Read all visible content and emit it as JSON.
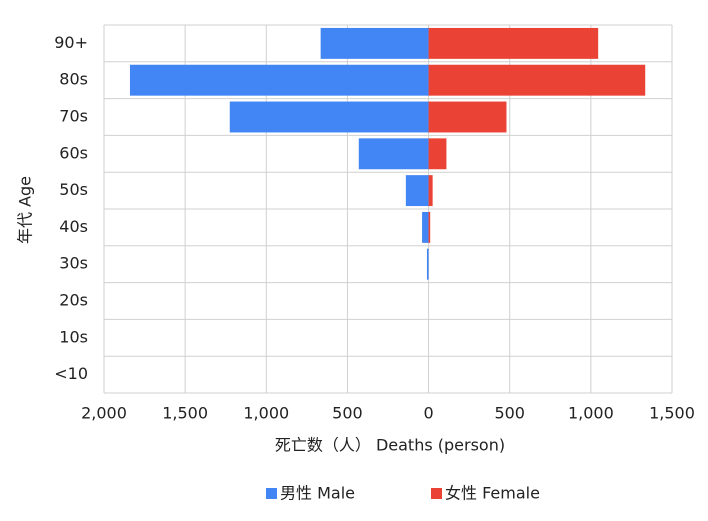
{
  "chart_data": {
    "type": "pyramid",
    "categories": [
      "90+",
      "80s",
      "70s",
      "60s",
      "50s",
      "40s",
      "30s",
      "20s",
      "10s",
      "<10"
    ],
    "series": [
      {
        "name": "男性 Male",
        "color": "#4285f4",
        "values": [
          -665,
          -1840,
          -1225,
          -430,
          -140,
          -40,
          -10,
          0,
          0,
          0
        ]
      },
      {
        "name": "女性 Female",
        "color": "#ea4335",
        "values": [
          1045,
          1335,
          480,
          110,
          25,
          10,
          0,
          0,
          0,
          0
        ]
      }
    ],
    "xlabel": "死亡数（人） Deaths (person)",
    "ylabel": "年代 Age",
    "xlim": [
      -2000,
      1500
    ],
    "xticks": [
      {
        "value": -2000,
        "label": "2,000"
      },
      {
        "value": -1500,
        "label": "1,500"
      },
      {
        "value": -1000,
        "label": "1,000"
      },
      {
        "value": -500,
        "label": "500"
      },
      0,
      500,
      {
        "value": 1000,
        "label": "1,000"
      },
      {
        "value": 1500,
        "label": "1,500"
      }
    ],
    "grid": true,
    "legend": "bottom"
  }
}
